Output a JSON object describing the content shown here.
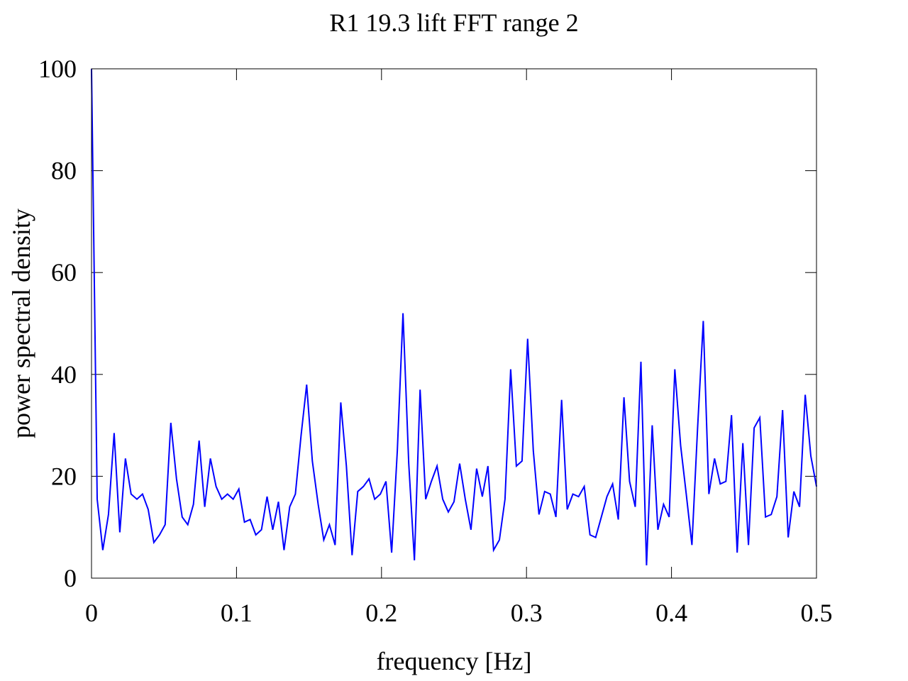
{
  "chart_data": {
    "type": "line",
    "title": "R1 19.3 lift FFT range 2",
    "xlabel": "frequency [Hz]",
    "ylabel": "power spectral density",
    "xlim": [
      0,
      0.5
    ],
    "ylim": [
      0,
      100
    ],
    "xticks": [
      0,
      0.1,
      0.2,
      0.3,
      0.4,
      0.5
    ],
    "xtick_labels": [
      "0",
      "0.1",
      "0.2",
      "0.3",
      "0.4",
      "0.5"
    ],
    "yticks": [
      0,
      20,
      40,
      60,
      80,
      100
    ],
    "ytick_labels": [
      "0",
      "20",
      "40",
      "60",
      "80",
      "100"
    ],
    "grid": false,
    "line_color": "#0000ff",
    "series": [
      {
        "x": [
          0.0,
          0.0039,
          0.0078,
          0.0117,
          0.0156,
          0.0195,
          0.0234,
          0.0273,
          0.0313,
          0.0352,
          0.0391,
          0.043,
          0.0469,
          0.0508,
          0.0547,
          0.0586,
          0.0625,
          0.0664,
          0.0703,
          0.0742,
          0.0781,
          0.082,
          0.0859,
          0.0898,
          0.0938,
          0.0977,
          0.1016,
          0.1055,
          0.1094,
          0.1133,
          0.1172,
          0.1211,
          0.125,
          0.1289,
          0.1328,
          0.1367,
          0.1406,
          0.1445,
          0.1484,
          0.1523,
          0.1563,
          0.1602,
          0.1641,
          0.168,
          0.1719,
          0.1758,
          0.1797,
          0.1836,
          0.1875,
          0.1914,
          0.1953,
          0.1992,
          0.2031,
          0.207,
          0.2109,
          0.2148,
          0.2188,
          0.2227,
          0.2266,
          0.2305,
          0.2344,
          0.2383,
          0.2422,
          0.2461,
          0.25,
          0.2539,
          0.2578,
          0.2617,
          0.2656,
          0.2695,
          0.2734,
          0.2773,
          0.2813,
          0.2852,
          0.2891,
          0.293,
          0.2969,
          0.3008,
          0.3047,
          0.3086,
          0.3125,
          0.3164,
          0.3203,
          0.3242,
          0.3281,
          0.332,
          0.3359,
          0.3398,
          0.3438,
          0.3477,
          0.3516,
          0.3555,
          0.3594,
          0.3633,
          0.3672,
          0.3711,
          0.375,
          0.3789,
          0.3828,
          0.3867,
          0.3906,
          0.3945,
          0.3984,
          0.4023,
          0.4063,
          0.4102,
          0.4141,
          0.418,
          0.4219,
          0.4258,
          0.4297,
          0.4336,
          0.4375,
          0.4414,
          0.4453,
          0.4492,
          0.4531,
          0.457,
          0.4609,
          0.4648,
          0.4688,
          0.4727,
          0.4766,
          0.4805,
          0.4844,
          0.4883,
          0.4922,
          0.4961,
          0.5
        ],
        "values": [
          100,
          15.5,
          5.5,
          12.5,
          28.5,
          9.0,
          23.5,
          16.5,
          15.5,
          16.5,
          13.5,
          7.0,
          8.5,
          10.5,
          30.5,
          19.5,
          12.0,
          10.5,
          14.5,
          27.0,
          14.0,
          23.5,
          18.0,
          15.5,
          16.5,
          15.5,
          17.5,
          11.0,
          11.5,
          8.5,
          9.5,
          16.0,
          9.5,
          15.0,
          5.5,
          14.0,
          16.5,
          28.0,
          38.0,
          23.0,
          14.5,
          7.5,
          10.5,
          6.5,
          34.5,
          22.0,
          4.5,
          17.0,
          18.0,
          19.5,
          15.5,
          16.5,
          19.0,
          5.0,
          25.0,
          52.0,
          22.5,
          3.5,
          37.0,
          15.5,
          19.0,
          22.0,
          15.5,
          13.0,
          15.0,
          22.5,
          15.5,
          9.5,
          21.5,
          16.0,
          22.0,
          5.5,
          7.5,
          15.5,
          41.0,
          22.0,
          23.0,
          47.0,
          25.0,
          12.5,
          17.0,
          16.5,
          12.0,
          35.0,
          13.5,
          16.5,
          16.0,
          18.0,
          8.5,
          8.0,
          12.0,
          16.0,
          18.5,
          11.5,
          35.5,
          19.0,
          14.0,
          42.5,
          2.5,
          30.0,
          9.5,
          14.5,
          12.0,
          41.0,
          26.0,
          16.5,
          6.5,
          29.5,
          50.5,
          16.5,
          23.5,
          18.5,
          19.0,
          32.0,
          5.0,
          26.5,
          6.5,
          29.5,
          31.5,
          12.0,
          12.5,
          16.0,
          33.0,
          8.0,
          17.0,
          14.0,
          36.0,
          24.0,
          18.0
        ]
      }
    ]
  }
}
